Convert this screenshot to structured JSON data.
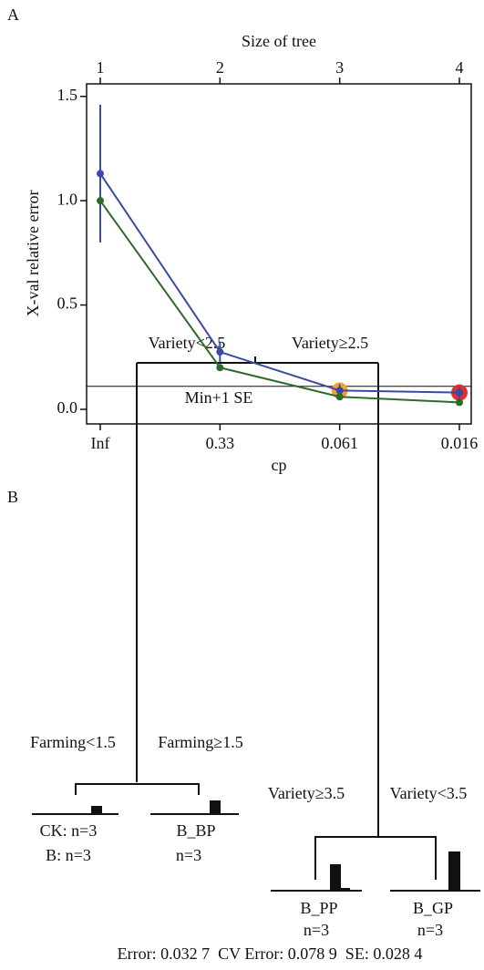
{
  "panel_labels": [
    "A",
    "B"
  ],
  "chart_data": {
    "type": "line",
    "x_label": "cp",
    "x2_label": "Size of tree",
    "y_label": "X-val relative error",
    "categories": [
      "Inf",
      "0.33",
      "0.061",
      "0.016"
    ],
    "x2_categories": [
      1,
      2,
      3,
      4
    ],
    "series": [
      {
        "color": "#3b4aa3",
        "values": [
          1.13,
          0.275,
          0.09,
          0.08
        ],
        "errors": [
          0.33,
          0.05,
          0.03,
          0.03
        ]
      },
      {
        "color": "#2e6a2a",
        "values": [
          1.0,
          0.2,
          0.06,
          0.033
        ]
      }
    ],
    "threshold": {
      "value": 0.11,
      "label": "Min+1 SE"
    },
    "highlights": [
      {
        "index": 2,
        "color": "#f2a23a"
      },
      {
        "index": 3,
        "color": "#e0302e"
      }
    ],
    "ylim": [
      -0.07,
      1.56
    ],
    "yticks": [
      {
        "value": 0,
        "label": "0.0"
      },
      0.5,
      {
        "value": 1,
        "label": "1.0"
      },
      1.5
    ]
  },
  "tree": {
    "splits": [
      "Variety<2.5",
      "Variety≥2.5",
      "Farming<1.5",
      "Farming≥1.5",
      "Variety≥3.5",
      "Variety<3.5"
    ],
    "leaves": [
      {
        "lines": [
          "CK: n=3",
          "B: n=3"
        ]
      },
      {
        "lines": [
          "B_BP",
          "n=3"
        ]
      },
      {
        "lines": [
          "B_PP",
          "n=3"
        ]
      },
      {
        "lines": [
          "B_GP",
          "n=3"
        ]
      }
    ],
    "footer": "Error: 0.032 7  CV Error: 0.078 9  SE: 0.028 4"
  }
}
